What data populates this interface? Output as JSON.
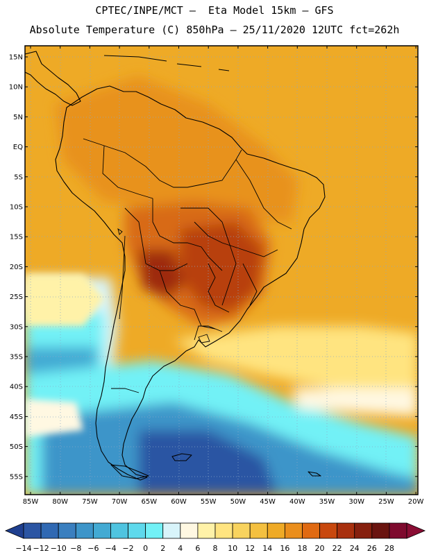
{
  "title": {
    "line1": "CPTEC/INPE/MCT –  Eta Model 15km – GFS",
    "line2": "Absolute Temperature (C) 850hPa – 25/11/2020 12UTC fct=262h"
  },
  "map": {
    "lat_labels": [
      "15N",
      "10N",
      "5N",
      "EQ",
      "5S",
      "10S",
      "15S",
      "20S",
      "25S",
      "30S",
      "35S",
      "40S",
      "45S",
      "50S",
      "55S"
    ],
    "lon_labels": [
      "85W",
      "80W",
      "75W",
      "70W",
      "65W",
      "60W",
      "55W",
      "50W",
      "45W",
      "40W",
      "35W",
      "30W",
      "25W",
      "20W"
    ]
  },
  "colorbar": {
    "labels": [
      "-14",
      "-12",
      "-10",
      "-8",
      "-6",
      "-4",
      "-2",
      "0",
      "2",
      "4",
      "6",
      "8",
      "10",
      "12",
      "14",
      "16",
      "18",
      "20",
      "22",
      "24",
      "26",
      "28"
    ],
    "colors": [
      "#1f3f8f",
      "#2b55a3",
      "#3069b3",
      "#3a7fbf",
      "#3d95c9",
      "#43aad3",
      "#4fc4e0",
      "#5ed9ec",
      "#72f1f6",
      "#d8f4fa",
      "#fff8e2",
      "#fff2a8",
      "#ffe480",
      "#f8d35e",
      "#f4c040",
      "#efaa26",
      "#ea8e1c",
      "#e06a12",
      "#c8480e",
      "#a8300e",
      "#86200e",
      "#6a1410",
      "#7e0a2e",
      "#8a0d34"
    ]
  },
  "colors": {
    "land_outline": "#000000",
    "grid": "#8aa8c8"
  }
}
